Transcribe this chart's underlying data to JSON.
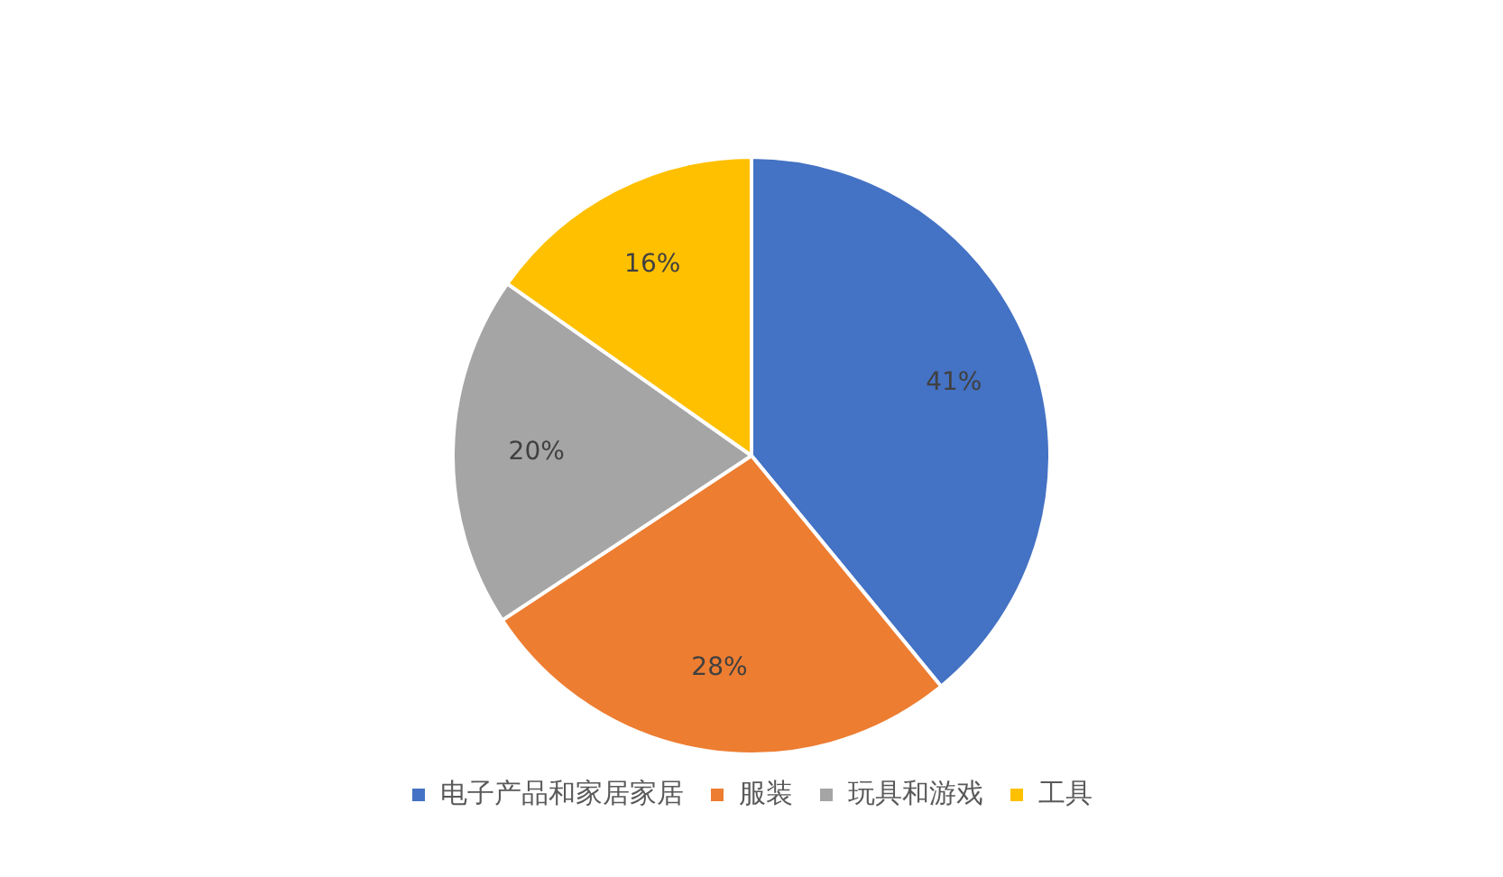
{
  "chart_data": {
    "type": "pie",
    "categories": [
      "电子产品和家居家居",
      "服装",
      "玩具和游戏",
      "工具"
    ],
    "values": [
      41,
      28,
      20,
      16
    ],
    "colors": [
      "#4472c4",
      "#ed7d31",
      "#a5a5a5",
      "#ffc000"
    ],
    "value_labels": [
      "41%",
      "28%",
      "20%",
      "16%"
    ],
    "legend": "bottom"
  }
}
